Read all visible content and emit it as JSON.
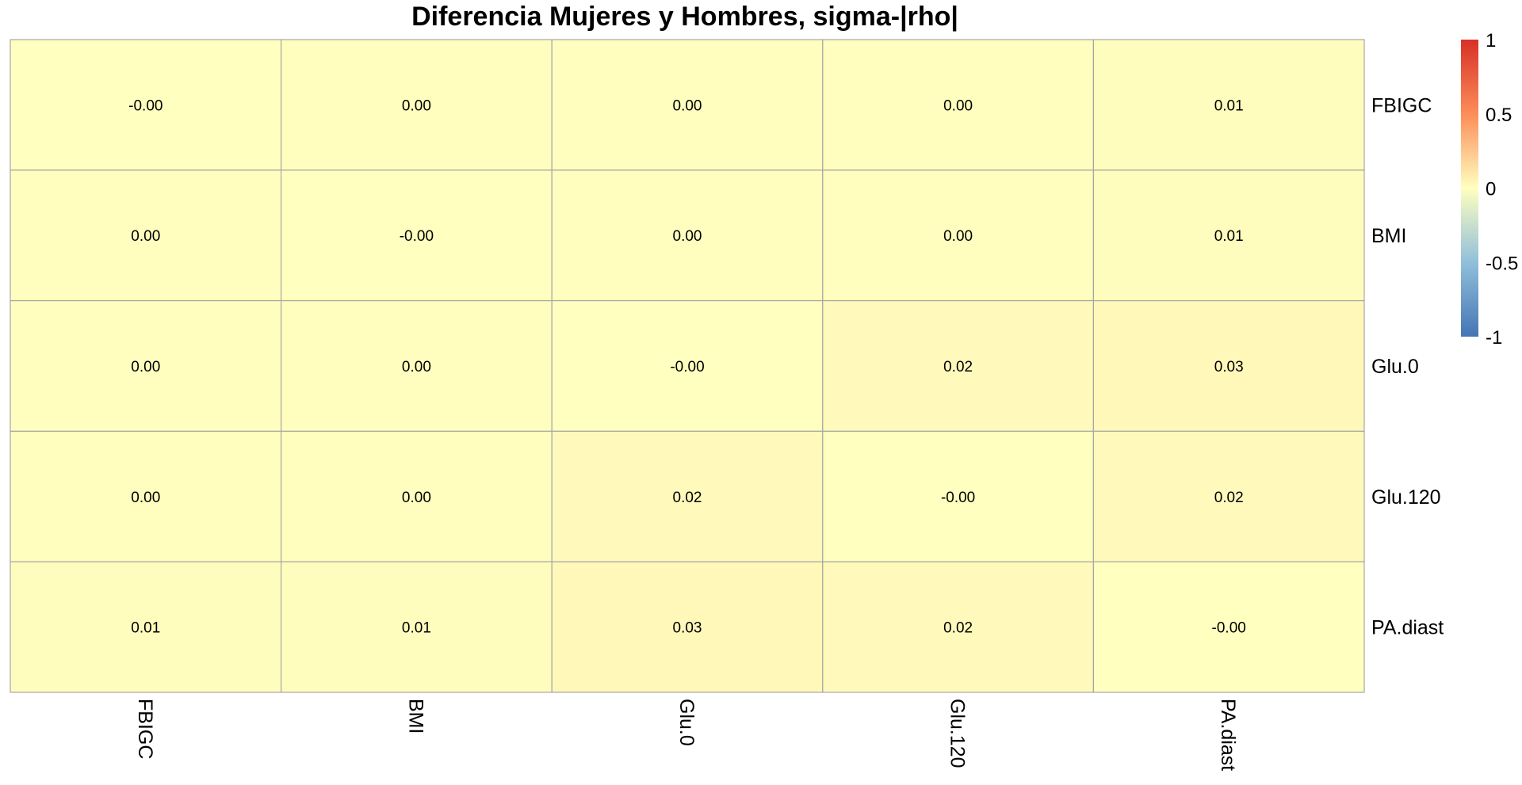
{
  "chart_data": {
    "type": "heatmap",
    "title": "Diferencia Mujeres y Hombres, sigma-|rho|",
    "rows": [
      "FBIGC",
      "BMI",
      "Glu.0",
      "Glu.120",
      "PA.diast"
    ],
    "columns": [
      "FBIGC",
      "BMI",
      "Glu.0",
      "Glu.120",
      "PA.diast"
    ],
    "values": [
      [
        -0.001,
        0.004,
        0.004,
        0.004,
        0.01
      ],
      [
        0.004,
        -0.001,
        0.004,
        0.004,
        0.01
      ],
      [
        0.004,
        0.004,
        -0.001,
        0.02,
        0.03
      ],
      [
        0.004,
        0.004,
        0.02,
        -0.001,
        0.02
      ],
      [
        0.01,
        0.01,
        0.03,
        0.02,
        -0.001
      ]
    ],
    "labels": [
      [
        "-0.00",
        "0.00",
        "0.00",
        "0.00",
        "0.01"
      ],
      [
        "0.00",
        "-0.00",
        "0.00",
        "0.00",
        "0.01"
      ],
      [
        "0.00",
        "0.00",
        "-0.00",
        "0.02",
        "0.03"
      ],
      [
        "0.00",
        "0.00",
        "0.02",
        "-0.00",
        "0.02"
      ],
      [
        "0.01",
        "0.01",
        "0.03",
        "0.02",
        "-0.00"
      ]
    ],
    "color_scale": {
      "min": -1,
      "max": 1,
      "stops": [
        {
          "value": -1,
          "color": "#4575b4"
        },
        {
          "value": -0.5,
          "color": "#91bfdb"
        },
        {
          "value": 0,
          "color": "#ffffbf"
        },
        {
          "value": 0.5,
          "color": "#fc8d59"
        },
        {
          "value": 1,
          "color": "#d73027"
        }
      ]
    },
    "legend": {
      "ticks": [
        "1",
        "0.5",
        "0",
        "-0.5",
        "-1"
      ],
      "tick_values": [
        1,
        0.5,
        0,
        -0.5,
        -1
      ],
      "placement": "right"
    },
    "grid_color": "#a6a6a6",
    "grid": true
  }
}
